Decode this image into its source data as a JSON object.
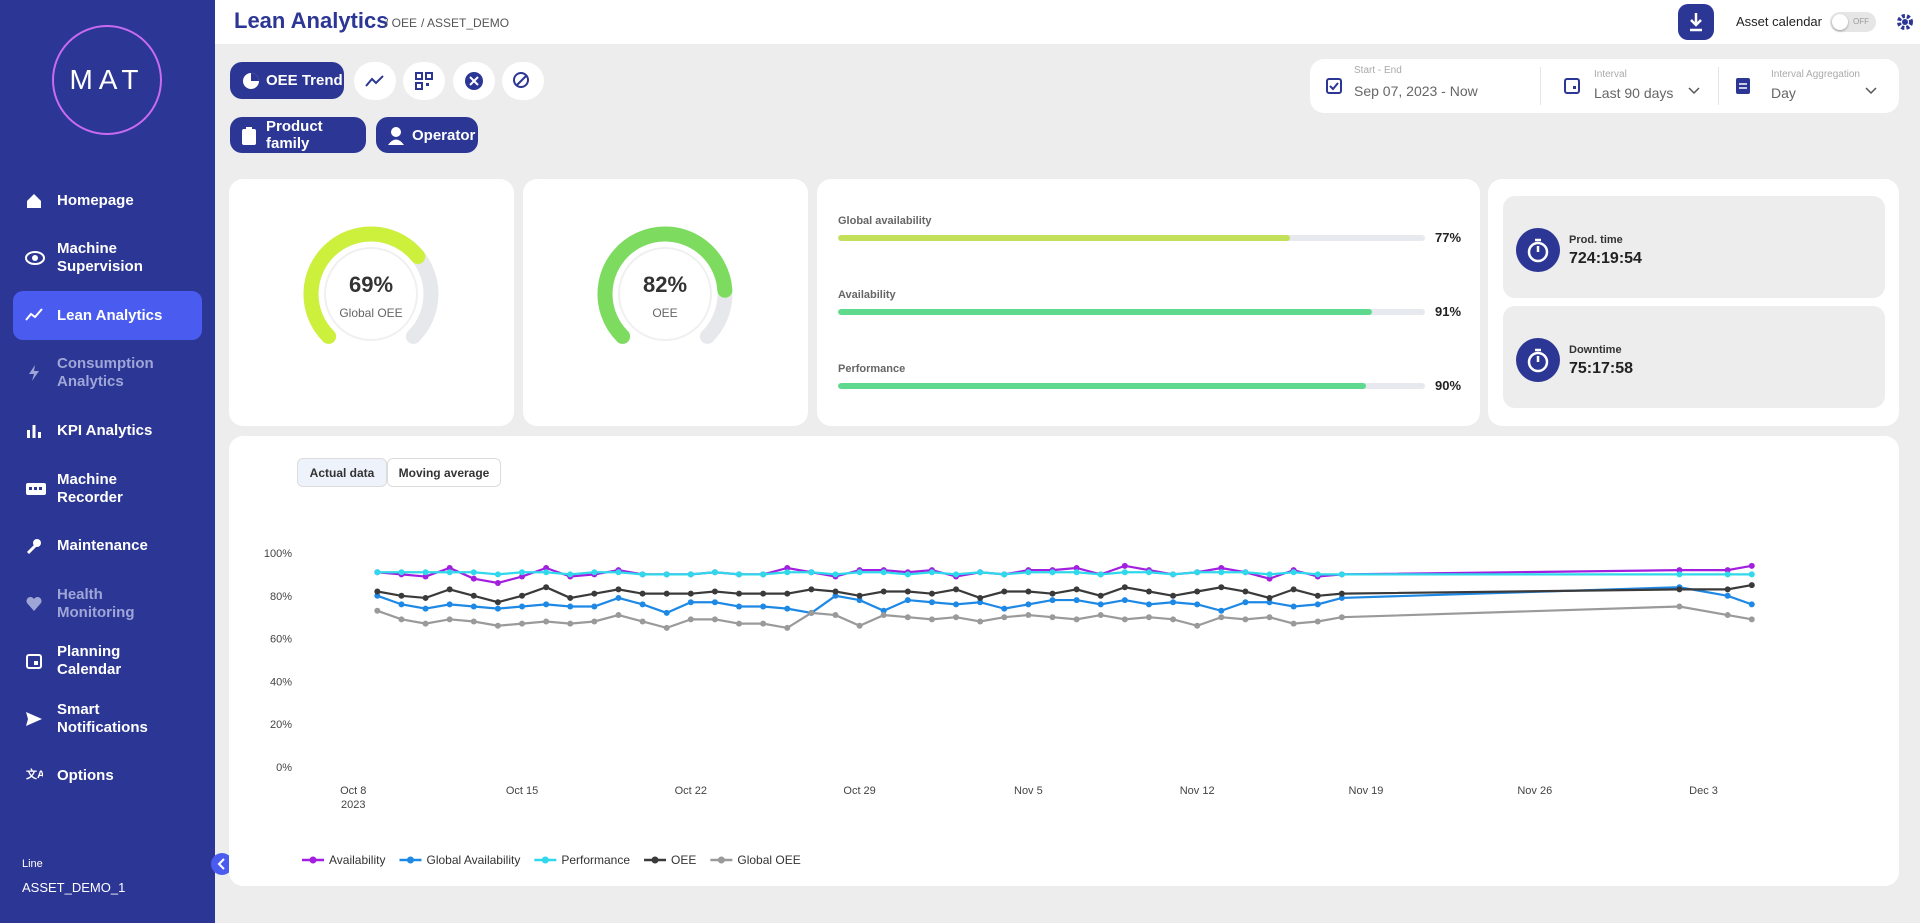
{
  "sidebar": {
    "logo": "MAT",
    "nav": [
      "Homepage",
      "Machine Supervision",
      "Lean Analytics",
      "Consumption Analytics",
      "KPI Analytics",
      "Machine Recorder",
      "Maintenance",
      "Health Monitoring",
      "Planning Calendar",
      "Smart Notifications",
      "Options"
    ],
    "line_label": "Line",
    "line_value": "ASSET_DEMO_1"
  },
  "header": {
    "title": "Lean Analytics",
    "breadcrumbs": [
      "/ OEE",
      "/ ASSET_DEMO"
    ],
    "asset_calendar": "Asset calendar",
    "toggle": "OFF"
  },
  "toolbar": {
    "view": "OEE Trend",
    "filters": [
      "Product family",
      "Operator"
    ]
  },
  "date_filter": {
    "start_end_label": "Start - End",
    "start_end": "Sep 07, 2023 - Now",
    "interval_label": "Interval",
    "interval": "Last 90 days",
    "aggregation_label": "Interval Aggregation",
    "aggregation": "Day"
  },
  "gauges": [
    {
      "value": 69,
      "value_label": "69%",
      "label": "Global OEE",
      "color": "#cdf03c"
    },
    {
      "value": 82,
      "value_label": "82%",
      "label": "OEE",
      "color": "#7ddc5f"
    }
  ],
  "bars": [
    {
      "label": "Global availability",
      "value": 77,
      "value_label": "77%",
      "color": "#c3e05b"
    },
    {
      "label": "Availability",
      "value": 91,
      "value_label": "91%",
      "color": "#5fd98e"
    },
    {
      "label": "Performance",
      "value": 90,
      "value_label": "90%",
      "color": "#5fd98e"
    }
  ],
  "times": [
    {
      "label": "Prod. time",
      "value": "724:19:54"
    },
    {
      "label": "Downtime",
      "value": "75:17:58"
    }
  ],
  "chart_buttons": [
    "Actual data",
    "Moving average"
  ],
  "chart_data": {
    "type": "line",
    "x": [
      "2023-10-09",
      "2023-10-10",
      "2023-10-11",
      "2023-10-12",
      "2023-10-13",
      "2023-10-14",
      "2023-10-15",
      "2023-10-16",
      "2023-10-17",
      "2023-10-18",
      "2023-10-19",
      "2023-10-20",
      "2023-10-21",
      "2023-10-22",
      "2023-10-23",
      "2023-10-24",
      "2023-10-25",
      "2023-10-26",
      "2023-10-27",
      "2023-10-28",
      "2023-10-29",
      "2023-10-30",
      "2023-10-31",
      "2023-11-01",
      "2023-11-02",
      "2023-11-03",
      "2023-11-04",
      "2023-11-05",
      "2023-11-06",
      "2023-11-07",
      "2023-11-08",
      "2023-11-09",
      "2023-11-10",
      "2023-11-11",
      "2023-11-12",
      "2023-11-13",
      "2023-11-14",
      "2023-11-15",
      "2023-11-16",
      "2023-11-17",
      "2023-11-18",
      "2023-12-02",
      "2023-12-04",
      "2023-12-05"
    ],
    "xlim": [
      "2023-10-06",
      "2023-12-07"
    ],
    "xticks": [
      {
        "value": "2023-10-08",
        "label": "Oct 8"
      },
      {
        "value": "2023-10-15",
        "label": "Oct 15"
      },
      {
        "value": "2023-10-22",
        "label": "Oct 22"
      },
      {
        "value": "2023-10-29",
        "label": "Oct 29"
      },
      {
        "value": "2023-11-05",
        "label": "Nov 5"
      },
      {
        "value": "2023-11-12",
        "label": "Nov 12"
      },
      {
        "value": "2023-11-19",
        "label": "Nov 19"
      },
      {
        "value": "2023-11-26",
        "label": "Nov 26"
      },
      {
        "value": "2023-12-03",
        "label": "Dec 3"
      }
    ],
    "x_year_label": "2023",
    "ylim": [
      0,
      100
    ],
    "yticks": [
      {
        "value": 0,
        "label": "0%"
      },
      {
        "value": 20,
        "label": "20%"
      },
      {
        "value": 40,
        "label": "40%"
      },
      {
        "value": 60,
        "label": "60%"
      },
      {
        "value": 80,
        "label": "80%"
      },
      {
        "value": 100,
        "label": "100%"
      }
    ],
    "grid": false,
    "series": [
      {
        "name": "Availability",
        "color": "#a21fe0",
        "values": [
          91,
          90,
          89,
          93,
          88,
          86,
          89,
          93,
          89,
          90,
          92,
          90,
          90,
          90,
          91,
          90,
          90,
          93,
          91,
          89,
          92,
          92,
          91,
          92,
          89,
          91,
          90,
          92,
          92,
          93,
          90,
          94,
          92,
          90,
          91,
          93,
          91,
          88,
          92,
          89,
          90,
          92,
          92,
          94
        ]
      },
      {
        "name": "Global Availability",
        "color": "#1e88e5",
        "values": [
          80,
          76,
          74,
          76,
          75,
          74,
          75,
          76,
          75,
          75,
          79,
          76,
          72,
          77,
          77,
          75,
          75,
          74,
          72,
          80,
          78,
          73,
          78,
          77,
          76,
          77,
          74,
          76,
          78,
          78,
          76,
          78,
          76,
          77,
          76,
          73,
          77,
          77,
          75,
          76,
          79,
          84,
          80,
          76
        ]
      },
      {
        "name": "Performance",
        "color": "#2fd8ea",
        "values": [
          91,
          91,
          91,
          91,
          91,
          90,
          91,
          91,
          90,
          91,
          91,
          90,
          90,
          90,
          91,
          90,
          90,
          91,
          91,
          90,
          91,
          91,
          90,
          91,
          90,
          91,
          90,
          91,
          91,
          91,
          90,
          91,
          91,
          90,
          91,
          91,
          91,
          90,
          91,
          90,
          90,
          90,
          90,
          90
        ]
      },
      {
        "name": "OEE",
        "color": "#3a3a3a",
        "values": [
          82,
          80,
          79,
          83,
          80,
          77,
          80,
          84,
          79,
          81,
          83,
          81,
          81,
          81,
          82,
          81,
          81,
          81,
          83,
          82,
          80,
          82,
          82,
          81,
          83,
          79,
          82,
          82,
          81,
          83,
          80,
          84,
          82,
          80,
          82,
          84,
          82,
          79,
          83,
          80,
          81,
          83,
          83,
          85
        ]
      },
      {
        "name": "Global OEE",
        "color": "#9a9a9a",
        "values": [
          73,
          69,
          67,
          69,
          68,
          66,
          67,
          68,
          67,
          68,
          71,
          68,
          65,
          69,
          69,
          67,
          67,
          65,
          72,
          71,
          66,
          71,
          70,
          69,
          70,
          68,
          70,
          71,
          70,
          69,
          71,
          69,
          70,
          69,
          66,
          70,
          69,
          70,
          67,
          68,
          70,
          75,
          71,
          69
        ]
      }
    ]
  }
}
